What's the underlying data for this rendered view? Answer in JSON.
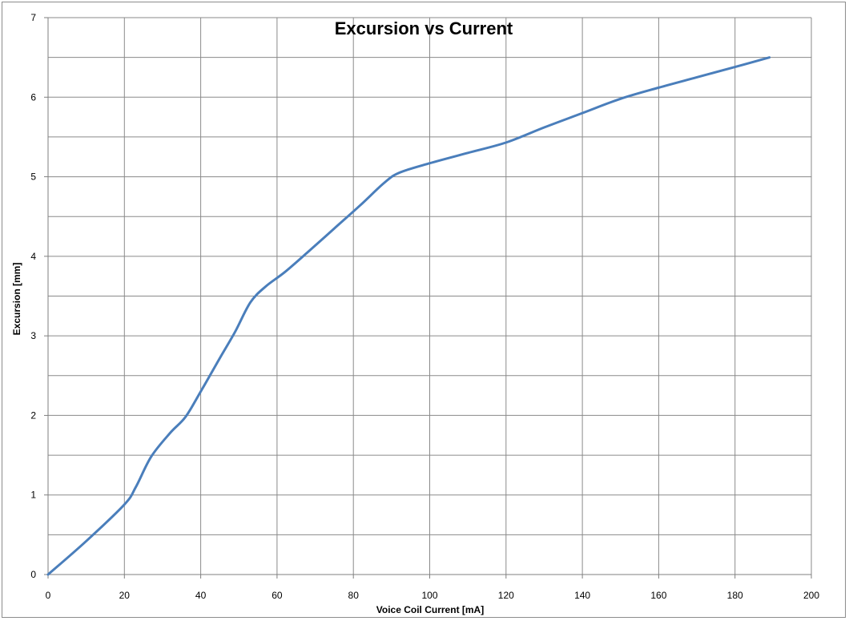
{
  "chart_data": {
    "type": "line",
    "title": "Excursion vs Current",
    "xlabel": "Voice Coil Current  [mA]",
    "ylabel": "Excursion  [mm]",
    "xlim": [
      0,
      200
    ],
    "ylim": [
      0,
      7
    ],
    "x_ticks": [
      0,
      20,
      40,
      60,
      80,
      100,
      120,
      140,
      160,
      180,
      200
    ],
    "y_ticks": [
      0,
      1,
      2,
      3,
      4,
      5,
      6,
      7
    ],
    "x_tick_labels": [
      "0",
      "20",
      "40",
      "60",
      "80",
      "100",
      "120",
      "140",
      "160",
      "180",
      "200"
    ],
    "y_tick_labels": [
      "0",
      "1",
      "2",
      "3",
      "4",
      "5",
      "6",
      "7"
    ],
    "grid": true,
    "legend": "none",
    "series": [
      {
        "color": "#4a7ebb",
        "points": [
          [
            0,
            0
          ],
          [
            10,
            0.42
          ],
          [
            20,
            0.88
          ],
          [
            23,
            1.1
          ],
          [
            27,
            1.48
          ],
          [
            32,
            1.78
          ],
          [
            36,
            1.98
          ],
          [
            40,
            2.3
          ],
          [
            45,
            2.72
          ],
          [
            49,
            3.05
          ],
          [
            53,
            3.42
          ],
          [
            57,
            3.62
          ],
          [
            62,
            3.8
          ],
          [
            68,
            4.05
          ],
          [
            75,
            4.35
          ],
          [
            82,
            4.65
          ],
          [
            88,
            4.92
          ],
          [
            92,
            5.05
          ],
          [
            100,
            5.17
          ],
          [
            110,
            5.3
          ],
          [
            120,
            5.43
          ],
          [
            130,
            5.62
          ],
          [
            140,
            5.8
          ],
          [
            150,
            5.98
          ],
          [
            160,
            6.12
          ],
          [
            170,
            6.25
          ],
          [
            180,
            6.38
          ],
          [
            189,
            6.5
          ]
        ]
      }
    ]
  }
}
